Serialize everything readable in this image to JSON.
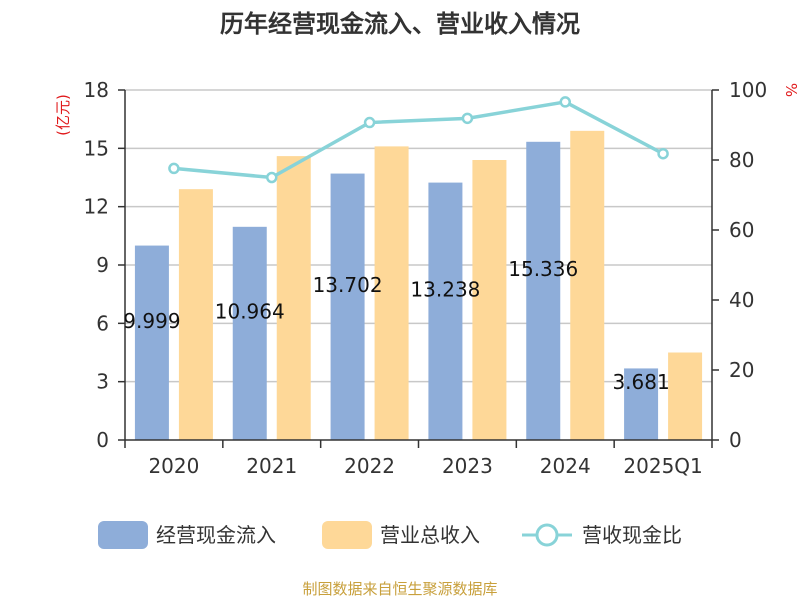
{
  "chart_data": {
    "type": "bar",
    "title": "历年经营现金流入、营业收入情况",
    "categories": [
      "2020",
      "2021",
      "2022",
      "2023",
      "2024",
      "2025Q1"
    ],
    "series": [
      {
        "name": "经营现金流入",
        "type": "bar",
        "axis": "left",
        "color": "#8eadd9",
        "values": [
          9.999,
          10.964,
          13.702,
          13.238,
          15.336,
          3.681
        ]
      },
      {
        "name": "营业总收入",
        "type": "bar",
        "axis": "left",
        "color": "#fed898",
        "values": [
          12.9,
          14.6,
          15.1,
          14.4,
          15.9,
          4.5
        ]
      },
      {
        "name": "营收现金比",
        "type": "line",
        "axis": "right",
        "color": "#88d3d8",
        "values": [
          77.6,
          75.0,
          90.7,
          91.9,
          96.6,
          81.8
        ]
      }
    ],
    "data_labels": [
      "9.999",
      "10.964",
      "13.702",
      "13.238",
      "15.336",
      "3.681"
    ],
    "y_left": {
      "unit": "(亿元)",
      "min": 0,
      "max": 18,
      "ticks": [
        0,
        3,
        6,
        9,
        12,
        15,
        18
      ]
    },
    "y_right": {
      "unit": "%",
      "min": 0,
      "max": 100,
      "ticks": [
        0,
        20,
        40,
        60,
        80,
        100
      ]
    },
    "grid": true,
    "legend_position": "bottom"
  },
  "source_text": "制图数据来自恒生聚源数据库"
}
